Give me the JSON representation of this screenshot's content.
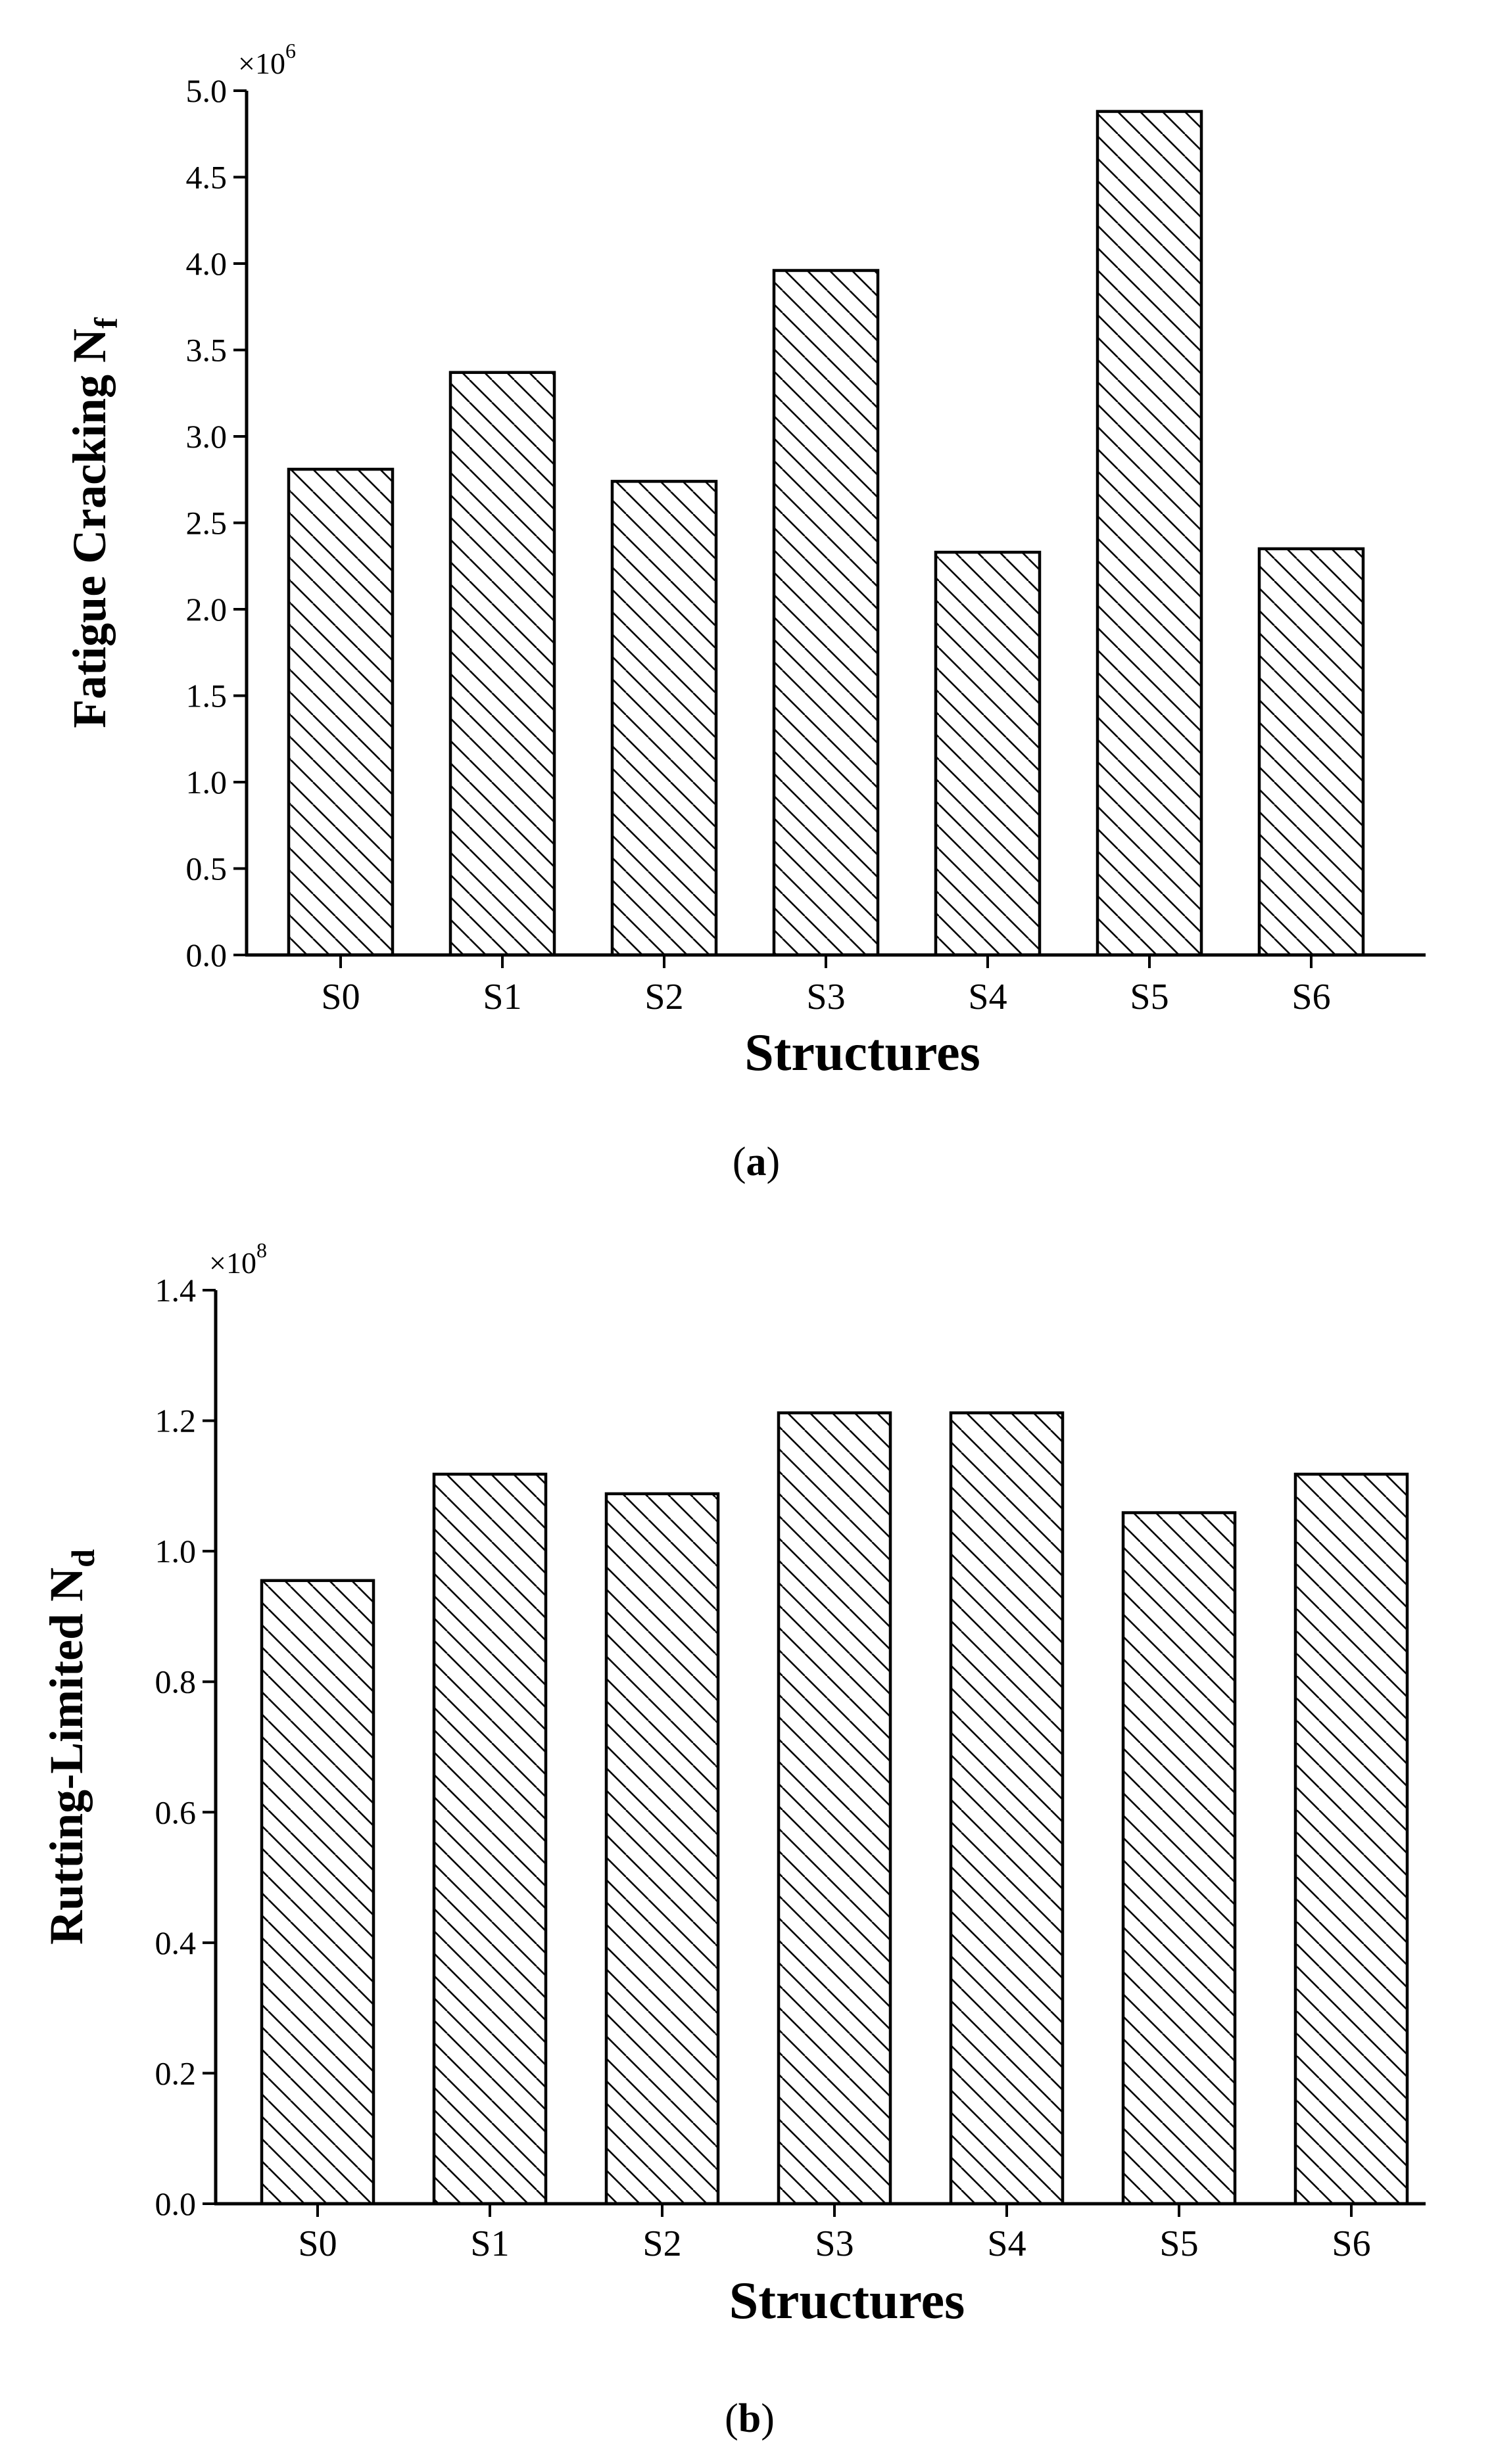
{
  "chart_data": [
    {
      "type": "bar",
      "panel_label": "a",
      "categories": [
        "S0",
        "S1",
        "S2",
        "S3",
        "S4",
        "S5",
        "S6"
      ],
      "values": [
        2.81,
        3.37,
        2.74,
        3.96,
        2.33,
        4.88,
        2.35
      ],
      "ylabel_main": "Fatigue Cracking N",
      "ylabel_sub": "f",
      "xlabel": "Structures",
      "multiplier_base": "×10",
      "multiplier_exp": "6",
      "ylim": [
        0,
        5.0
      ],
      "yticks": [
        0.0,
        0.5,
        1.0,
        1.5,
        2.0,
        2.5,
        3.0,
        3.5,
        4.0,
        4.5,
        5.0
      ],
      "tick_decimals": 1,
      "hatch": "diagonal-down",
      "grid": false
    },
    {
      "type": "bar",
      "panel_label": "b",
      "categories": [
        "S0",
        "S1",
        "S2",
        "S3",
        "S4",
        "S5",
        "S6"
      ],
      "values": [
        0.955,
        1.118,
        1.088,
        1.212,
        1.212,
        1.059,
        1.118
      ],
      "ylabel_main": "Rutting-Limited N",
      "ylabel_sub": "d",
      "xlabel": "Structures",
      "multiplier_base": "×10",
      "multiplier_exp": "8",
      "ylim": [
        0,
        1.4
      ],
      "yticks": [
        0.0,
        0.2,
        0.4,
        0.6,
        0.8,
        1.0,
        1.2,
        1.4
      ],
      "tick_decimals": 1,
      "hatch": "diagonal-down",
      "grid": false
    }
  ]
}
